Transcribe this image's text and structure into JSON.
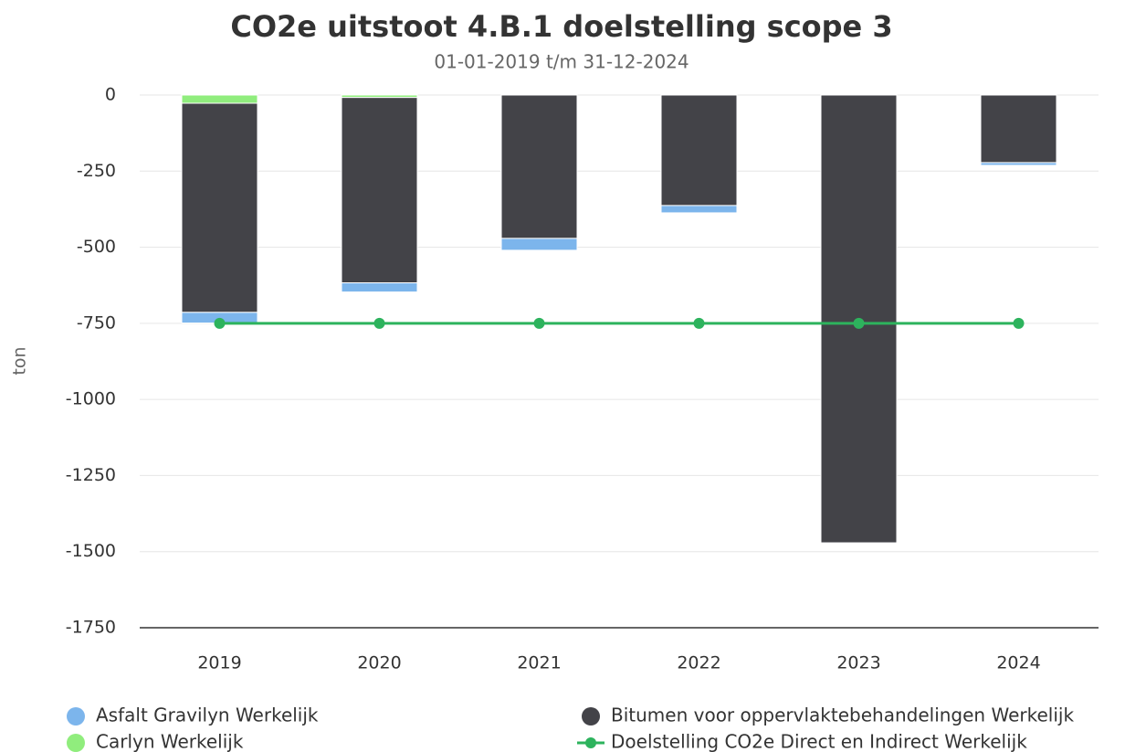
{
  "chart_data": {
    "type": "bar",
    "stacked": true,
    "title": "CO2e uitstoot 4.B.1 doelstelling scope 3",
    "subtitle": "01-01-2019 t/m 31-12-2024",
    "y_label": "ton",
    "categories": [
      "2019",
      "2020",
      "2021",
      "2022",
      "2023",
      "2024"
    ],
    "series": [
      {
        "name": "Asfalt Gravilyn Werkelijk",
        "color": "#7cb5ec",
        "values": [
          -35,
          -30,
          -39,
          -24,
          0,
          -9
        ]
      },
      {
        "name": "Bitumen voor oppervlaktebehandelingen Werkelijk",
        "color": "#434348",
        "values": [
          -687,
          -609,
          -471,
          -363,
          -1471,
          -222
        ]
      },
      {
        "name": "Carlyn Werkelijk",
        "color": "#90ed7d",
        "values": [
          -27,
          -8,
          0,
          0,
          0,
          0
        ]
      },
      {
        "name": "Doelstelling CO2e Direct en Indirect Werkelijk",
        "color": "#2db35d",
        "type": "line",
        "values": [
          -750,
          -750,
          -750,
          -750,
          -750,
          -750
        ]
      }
    ],
    "ylim": [
      -1750,
      0
    ],
    "yticks": [
      0,
      -250,
      -500,
      -750,
      -1000,
      -1250,
      -1500,
      -1750
    ],
    "grid": true,
    "legend": "bottom"
  }
}
